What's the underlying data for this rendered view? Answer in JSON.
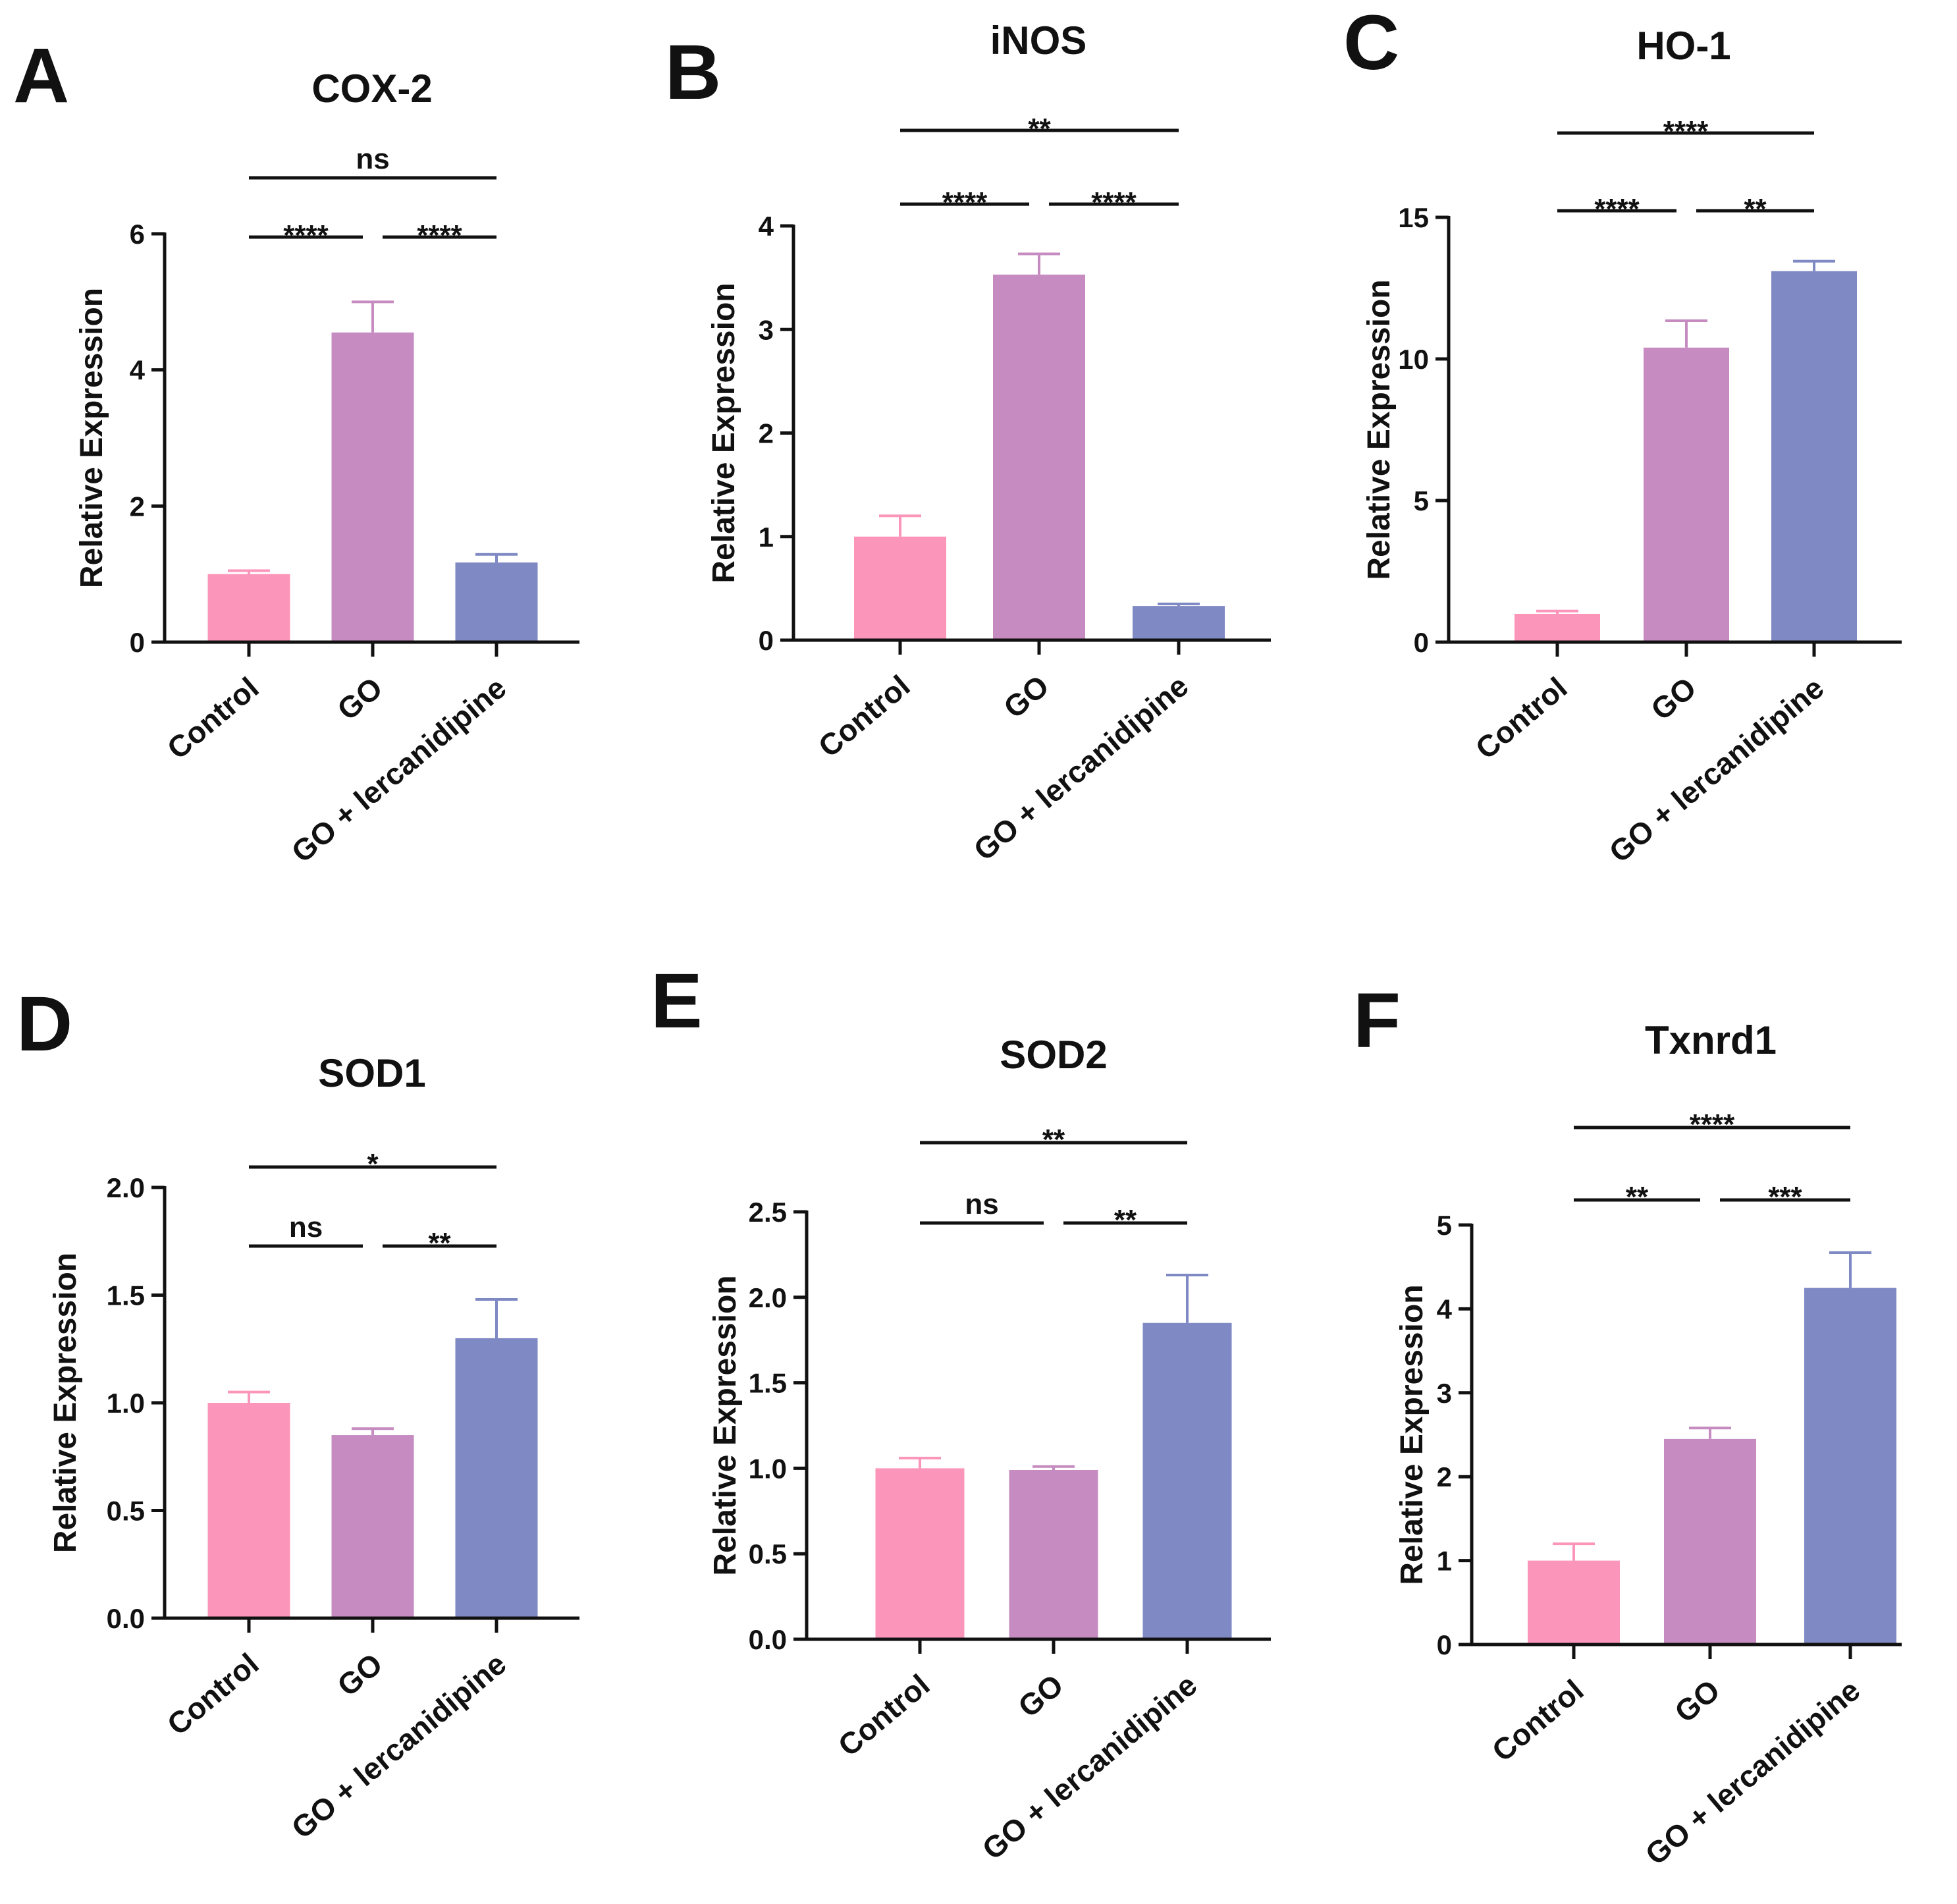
{
  "chart_data": [
    {
      "letter": "A",
      "type": "bar",
      "title": "COX-2",
      "ylabel": "Relative Expression",
      "categories": [
        "Control",
        "GO",
        "GO + lercanidipine"
      ],
      "values": [
        1.0,
        4.55,
        1.17
      ],
      "errors": [
        0.05,
        0.45,
        0.12
      ],
      "ylim": [
        0,
        6
      ],
      "yticks": [
        "0",
        "2",
        "4",
        "6"
      ],
      "ytick_values": [
        0,
        2,
        4,
        6
      ],
      "significance": [
        {
          "from": 0,
          "to": 1,
          "label": "****"
        },
        {
          "from": 1,
          "to": 2,
          "label": "****"
        },
        {
          "from": 0,
          "to": 2,
          "label": "ns"
        }
      ]
    },
    {
      "letter": "B",
      "type": "bar",
      "title": "iNOS",
      "ylabel": "Relative Expression",
      "categories": [
        "Control",
        "GO",
        "GO + lercanidipine"
      ],
      "values": [
        1.0,
        3.53,
        0.33
      ],
      "errors": [
        0.2,
        0.2,
        0.02
      ],
      "ylim": [
        0,
        4
      ],
      "yticks": [
        "0",
        "1",
        "2",
        "3",
        "4"
      ],
      "ytick_values": [
        0,
        1,
        2,
        3,
        4
      ],
      "significance": [
        {
          "from": 0,
          "to": 1,
          "label": "****"
        },
        {
          "from": 1,
          "to": 2,
          "label": "****"
        },
        {
          "from": 0,
          "to": 2,
          "label": "**"
        }
      ]
    },
    {
      "letter": "C",
      "type": "bar",
      "title": "HO-1",
      "ylabel": "Relative Expression",
      "categories": [
        "Control",
        "GO",
        "GO + lercanidipine"
      ],
      "values": [
        1.0,
        10.4,
        13.1
      ],
      "errors": [
        0.1,
        0.95,
        0.35
      ],
      "ylim": [
        0,
        15
      ],
      "yticks": [
        "0",
        "5",
        "10",
        "15"
      ],
      "ytick_values": [
        0,
        5,
        10,
        15
      ],
      "significance": [
        {
          "from": 0,
          "to": 1,
          "label": "****"
        },
        {
          "from": 1,
          "to": 2,
          "label": "**"
        },
        {
          "from": 0,
          "to": 2,
          "label": "****"
        }
      ]
    },
    {
      "letter": "D",
      "type": "bar",
      "title": "SOD1",
      "ylabel": "Relative Expression",
      "categories": [
        "Control",
        "GO",
        "GO + lercanidipine"
      ],
      "values": [
        1.0,
        0.85,
        1.3
      ],
      "errors": [
        0.05,
        0.03,
        0.18
      ],
      "ylim": [
        0,
        2.0
      ],
      "yticks": [
        "0.0",
        "0.5",
        "1.0",
        "1.5",
        "2.0"
      ],
      "ytick_values": [
        0,
        0.5,
        1.0,
        1.5,
        2.0
      ],
      "significance": [
        {
          "from": 0,
          "to": 1,
          "label": "ns"
        },
        {
          "from": 1,
          "to": 2,
          "label": "**"
        },
        {
          "from": 0,
          "to": 2,
          "label": "*"
        }
      ]
    },
    {
      "letter": "E",
      "type": "bar",
      "title": "SOD2",
      "ylabel": "Relative Expression",
      "categories": [
        "Control",
        "GO",
        "GO + lercanidipine"
      ],
      "values": [
        1.0,
        0.99,
        1.85
      ],
      "errors": [
        0.06,
        0.02,
        0.28
      ],
      "ylim": [
        0,
        2.5
      ],
      "yticks": [
        "0.0",
        "0.5",
        "1.0",
        "1.5",
        "2.0",
        "2.5"
      ],
      "ytick_values": [
        0,
        0.5,
        1.0,
        1.5,
        2.0,
        2.5
      ],
      "significance": [
        {
          "from": 0,
          "to": 1,
          "label": "ns"
        },
        {
          "from": 1,
          "to": 2,
          "label": "**"
        },
        {
          "from": 0,
          "to": 2,
          "label": "**"
        }
      ]
    },
    {
      "letter": "F",
      "type": "bar",
      "title": "Txnrd1",
      "ylabel": "Relative Expression",
      "categories": [
        "Control",
        "GO",
        "GO + lercanidipine"
      ],
      "values": [
        1.0,
        2.45,
        4.25
      ],
      "errors": [
        0.2,
        0.13,
        0.42
      ],
      "ylim": [
        0,
        5
      ],
      "yticks": [
        "0",
        "1",
        "2",
        "3",
        "4",
        "5"
      ],
      "ytick_values": [
        0,
        1,
        2,
        3,
        4,
        5
      ],
      "significance": [
        {
          "from": 0,
          "to": 1,
          "label": "**"
        },
        {
          "from": 1,
          "to": 2,
          "label": "***"
        },
        {
          "from": 0,
          "to": 2,
          "label": "****"
        }
      ]
    }
  ],
  "colors": {
    "control": "#fb96ba",
    "go": "#c68cc1",
    "go_lercanidipine": "#7f89c4",
    "axis": "#111111"
  }
}
